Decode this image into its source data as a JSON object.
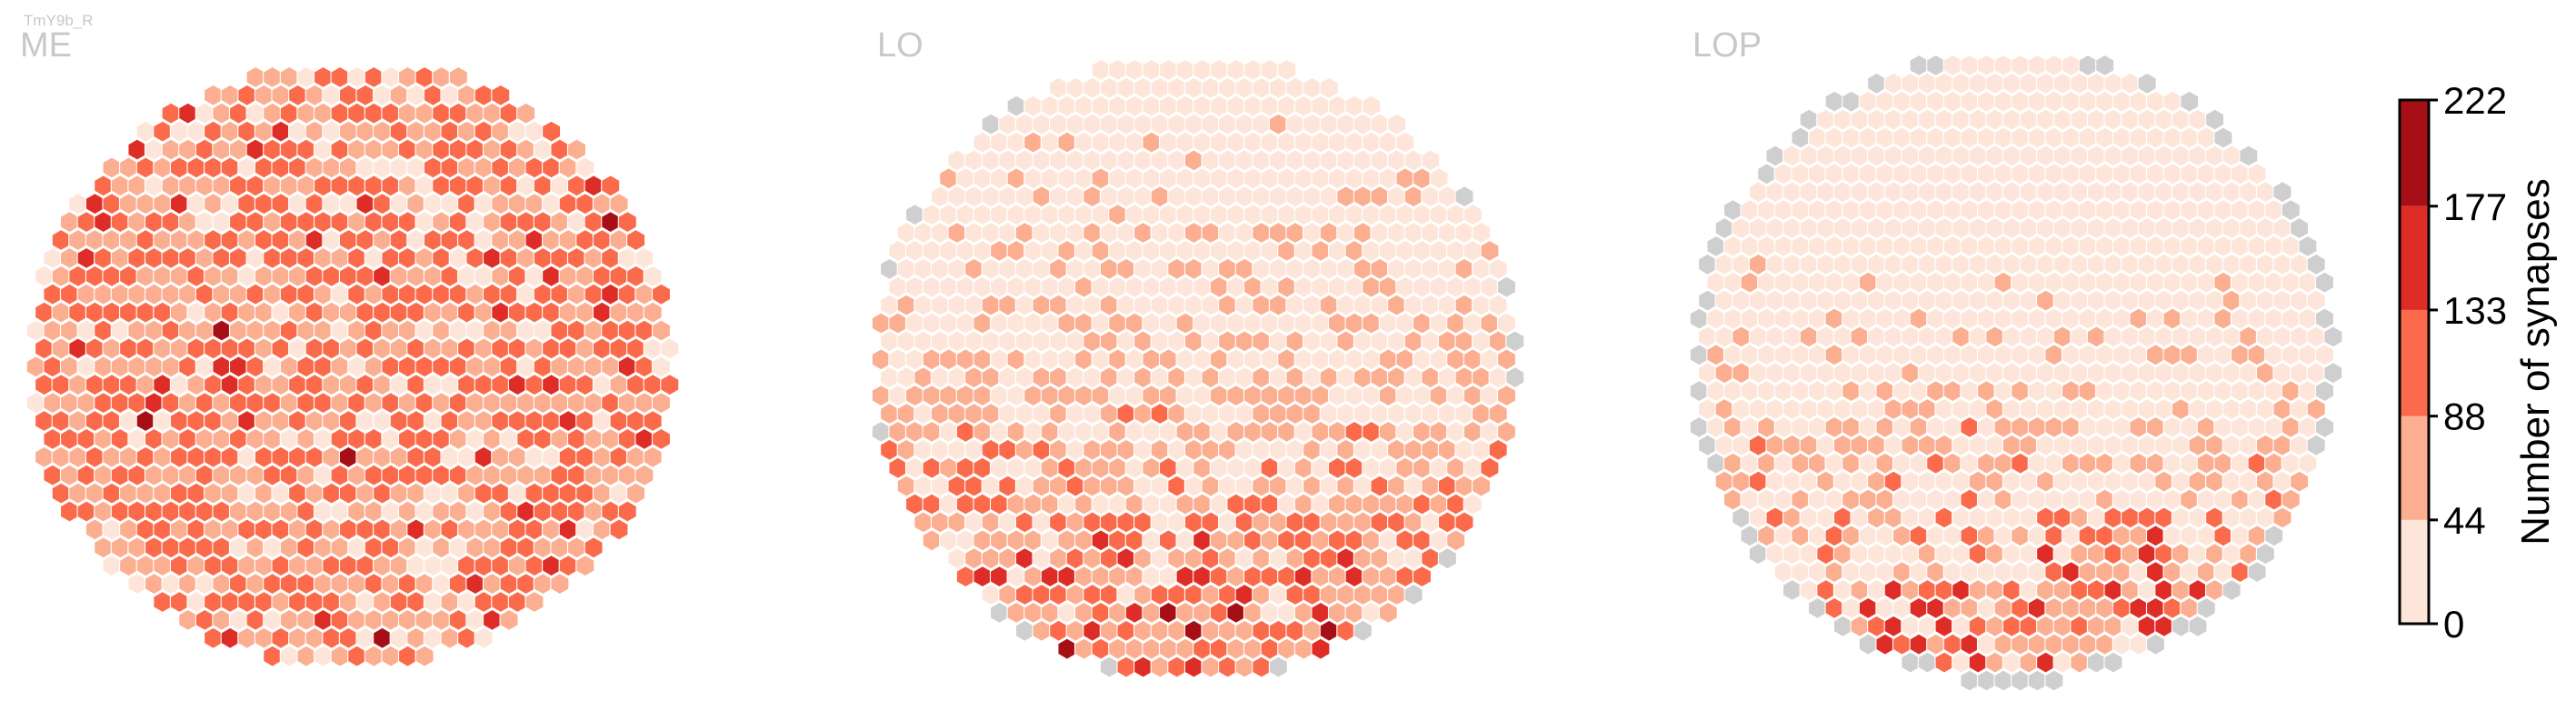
{
  "cell_type": "TmY9b_R",
  "colors": {
    "bins": [
      "#fee5d9",
      "#fcae91",
      "#fb6a4a",
      "#de2d26",
      "#a50f15"
    ],
    "no_data": "#cfcfcf",
    "zero_outline": "#d9d9d9"
  },
  "chart_data": [
    {
      "type": "heatmap",
      "subtype": "hexagonal",
      "title": "ME",
      "value_counts": {
        "0-44": 85,
        "44-88": 228,
        "88-133": 252,
        "133-177": 23,
        "177-222": 3,
        "no_data": 0
      },
      "max_location": "right edge, mid height"
    },
    {
      "type": "heatmap",
      "subtype": "hexagonal",
      "title": "LO",
      "value_counts": {
        "0-44": 322,
        "44-88": 195,
        "88-133": 59,
        "133-177": 12,
        "177-222": 3,
        "no_data": 16
      },
      "max_location": "lower-left quadrant"
    },
    {
      "type": "heatmap",
      "subtype": "hexagonal",
      "title": "LOP",
      "value_counts": {
        "0-44": 395,
        "44-88": 99,
        "88-133": 27,
        "133-177": 14,
        "177-222": 0,
        "no_data": 64
      },
      "max_location": "lower half"
    }
  ],
  "colorbar": {
    "label": "Number of synapses",
    "ticks": [
      "0",
      "44",
      "88",
      "133",
      "177",
      "222"
    ],
    "bounds": [
      0,
      44,
      88,
      133,
      177,
      222
    ]
  }
}
